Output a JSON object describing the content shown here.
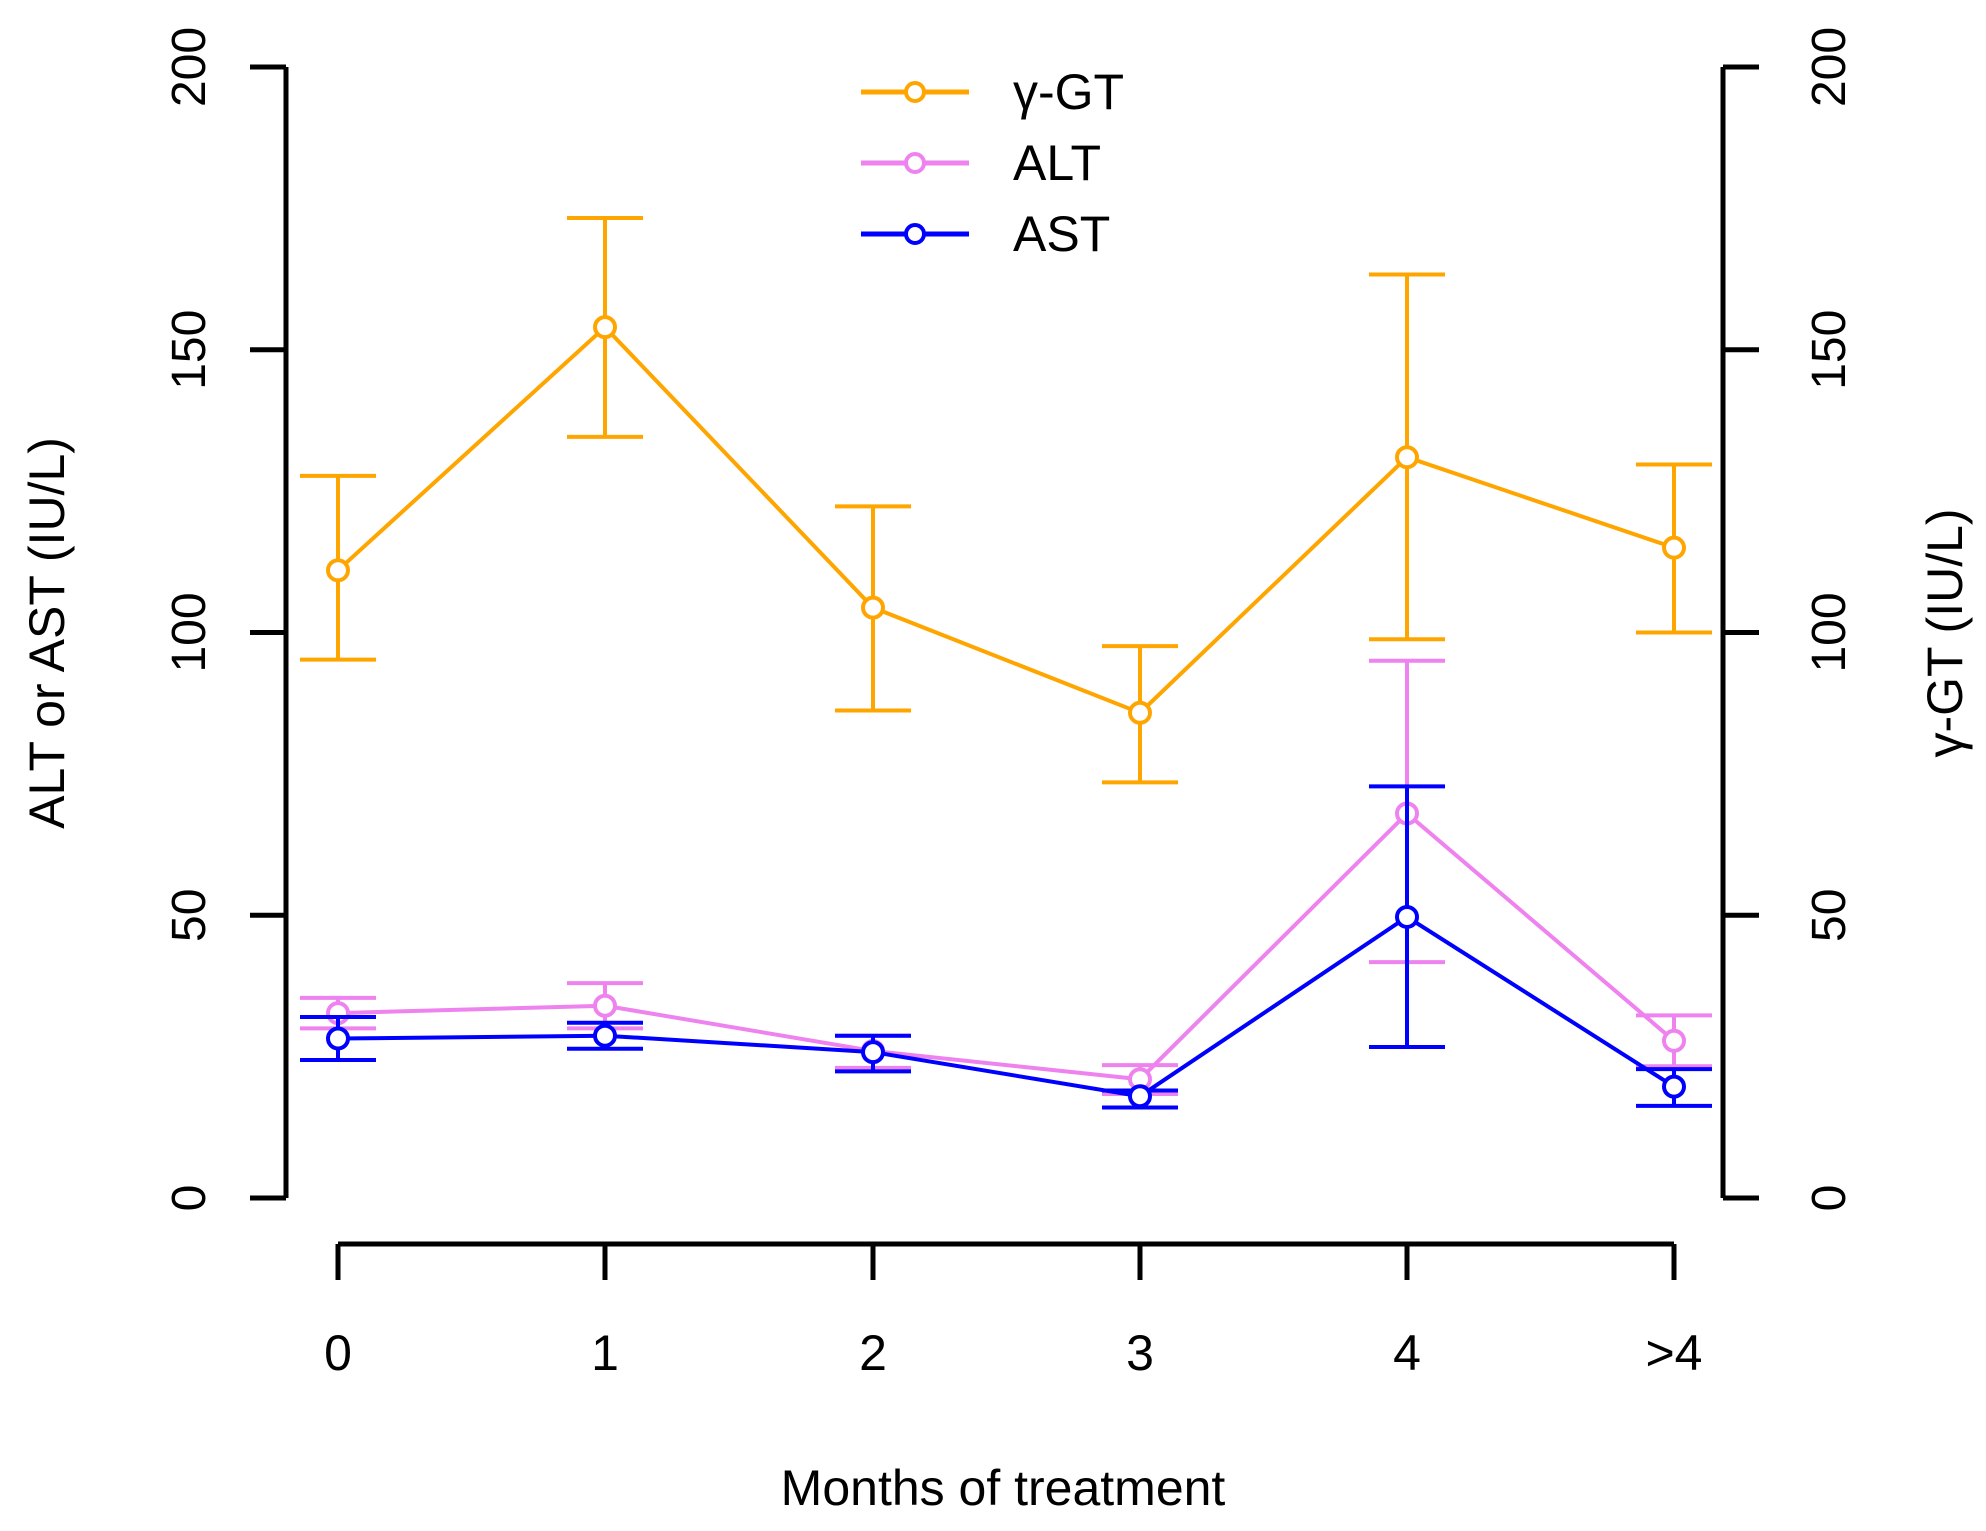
{
  "chart_data": {
    "type": "line",
    "xlabel": "Months of treatment",
    "ylabel_left": "ALT or AST (IU/L)",
    "ylabel_right": "γ-GT (IU/L)",
    "categories": [
      "0",
      "1",
      "2",
      "3",
      "4",
      ">4"
    ],
    "ylim_left": [
      0,
      200
    ],
    "ylim_right": [
      0,
      200
    ],
    "yticks": [
      "0",
      "50",
      "100",
      "150",
      "200"
    ],
    "ytick_values": [
      0,
      50,
      100,
      150,
      200
    ],
    "grid": false,
    "legend_position": "top-center",
    "series": [
      {
        "name": "γ-GT",
        "axis": "right",
        "color": "#FFA500",
        "values": [
          111,
          154,
          104.4,
          85.8,
          131,
          115
        ],
        "lower": [
          95.2,
          134.6,
          86.2,
          73.5,
          98.8,
          100
        ],
        "upper": [
          127.7,
          173.3,
          122.3,
          97.6,
          163.3,
          129.7
        ]
      },
      {
        "name": "ALT",
        "axis": "left",
        "color": "#EE82EE",
        "values": [
          32.7,
          34,
          26,
          21,
          68,
          27.8
        ],
        "lower": [
          30,
          30,
          23,
          18.4,
          41.7,
          23.3
        ],
        "upper": [
          35.4,
          38,
          28.7,
          23.5,
          95,
          32.3
        ]
      },
      {
        "name": "AST",
        "axis": "left",
        "color": "#0000FF",
        "values": [
          28.2,
          28.7,
          25.8,
          18,
          49.7,
          19.7
        ],
        "lower": [
          24.4,
          26.4,
          22.4,
          16,
          26.7,
          16.3
        ],
        "upper": [
          32,
          31,
          28.7,
          19,
          72.8,
          22.8
        ]
      }
    ]
  }
}
